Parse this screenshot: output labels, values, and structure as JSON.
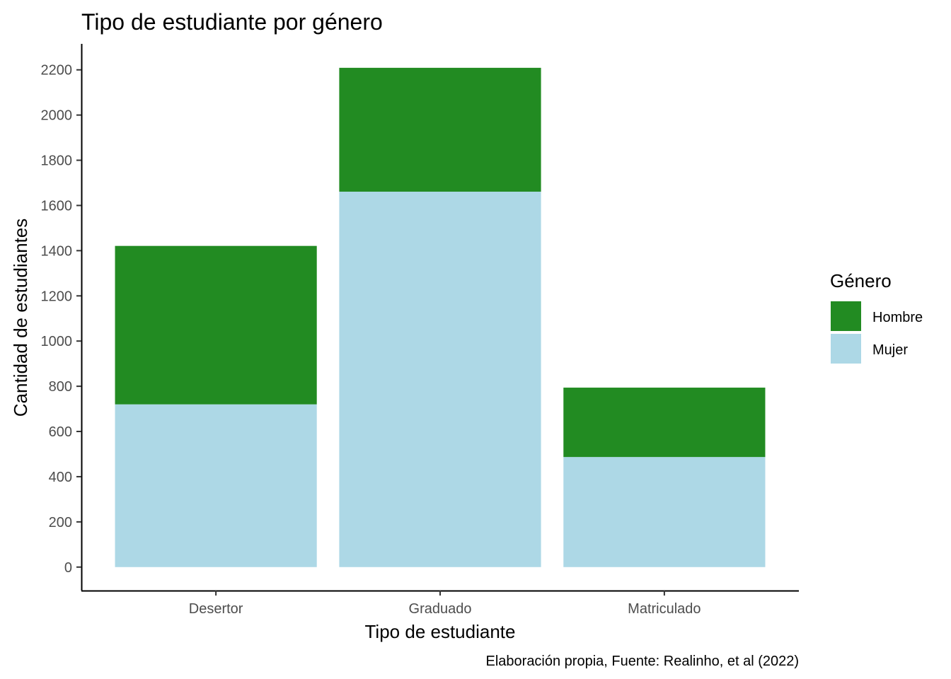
{
  "chart_data": {
    "type": "bar",
    "stacked": true,
    "title": "Tipo de estudiante por género",
    "xlabel": "Tipo de estudiante",
    "ylabel": "Cantidad de estudiantes",
    "caption": "Elaboración propia, Fuente: Realinho, et al (2022)",
    "categories": [
      "Desertor",
      "Graduado",
      "Matriculado"
    ],
    "series": [
      {
        "name": "Mujer",
        "values": [
          720,
          1661,
          487
        ],
        "color": "#ADD8E6"
      },
      {
        "name": "Hombre",
        "values": [
          701,
          548,
          307
        ],
        "color": "#228B22"
      }
    ],
    "ylim": [
      -104,
      2315
    ],
    "yticks": [
      0,
      200,
      400,
      600,
      800,
      1000,
      1200,
      1400,
      1600,
      1800,
      2000,
      2200
    ],
    "grid": false,
    "legend": {
      "title": "Género",
      "position": "right",
      "items": [
        {
          "label": "Hombre",
          "color": "#228B22"
        },
        {
          "label": "Mujer",
          "color": "#ADD8E6"
        }
      ]
    }
  }
}
